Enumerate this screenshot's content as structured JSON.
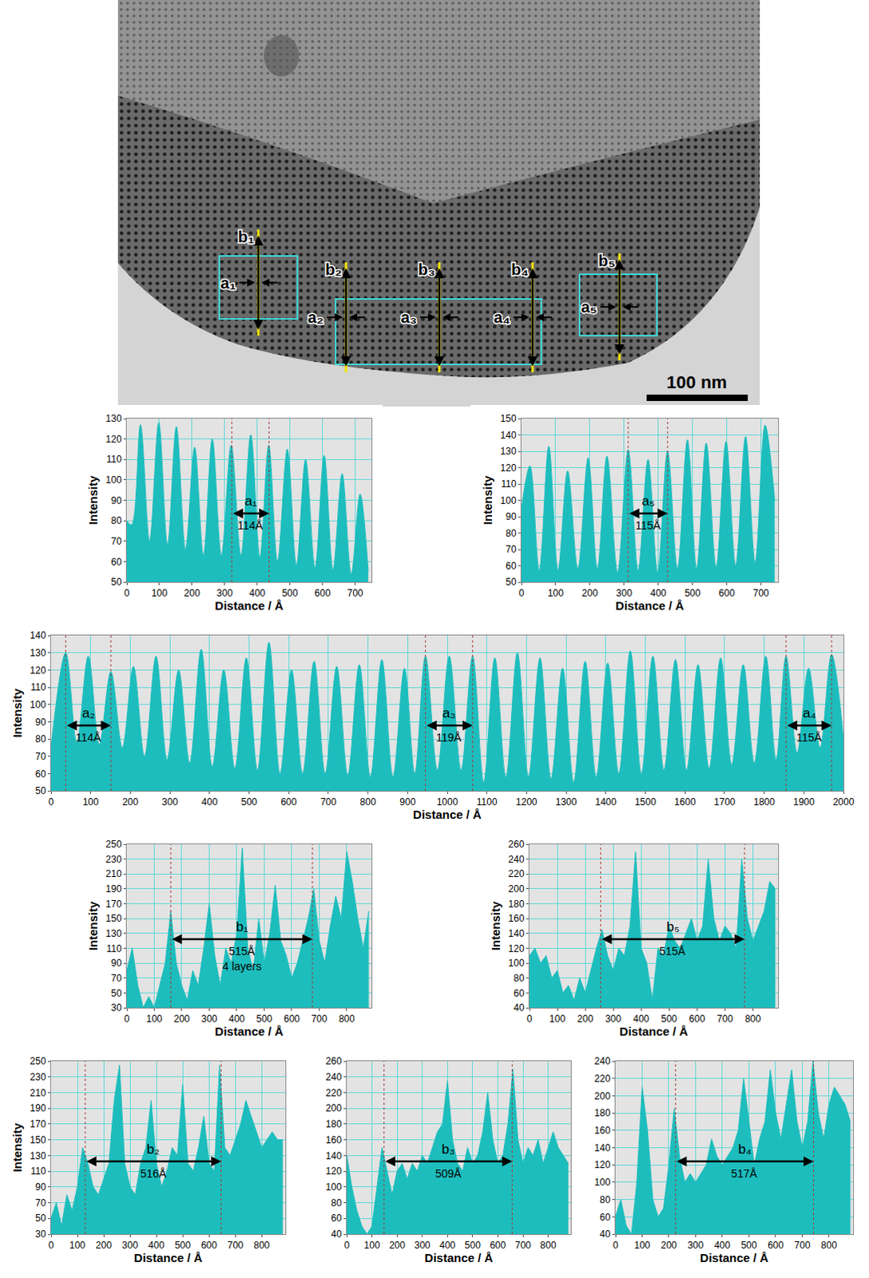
{
  "micrograph": {
    "labels": [
      {
        "a": "a₁",
        "b": "b₁"
      },
      {
        "a": "a₂",
        "b": "b₂"
      },
      {
        "a": "a₃",
        "b": "b₃"
      },
      {
        "a": "a₄",
        "b": "b₄"
      },
      {
        "a": "a₅",
        "b": "b₅"
      }
    ],
    "scale_bar": "100 nm"
  },
  "chart_data": [
    {
      "type": "area",
      "line_style": "smooth",
      "x_label": "Distance / Å",
      "y_label": "Intensity",
      "color": "#1dbdbd",
      "grid": true,
      "x": [
        0,
        15,
        42,
        70,
        98,
        125,
        152,
        180,
        208,
        235,
        262,
        290,
        320,
        350,
        380,
        408,
        435,
        462,
        492,
        520,
        548,
        577,
        605,
        632,
        660,
        688,
        715,
        740
      ],
      "values": [
        80,
        78,
        127,
        70,
        128,
        68,
        126,
        66,
        116,
        63,
        120,
        63,
        117,
        63,
        122,
        62,
        117,
        60,
        115,
        58,
        110,
        57,
        112,
        56,
        103,
        54,
        93,
        55
      ],
      "xlim": [
        0,
        750
      ],
      "xticks": [
        0,
        100,
        200,
        300,
        400,
        500,
        600,
        700
      ],
      "ylim": [
        50,
        130
      ],
      "yticks": [
        50,
        60,
        70,
        80,
        90,
        100,
        110,
        120,
        130
      ],
      "annotations": [
        {
          "label": "a₁",
          "text": "114Å",
          "length": 114,
          "start": 322,
          "end": 436
        }
      ]
    },
    {
      "type": "area",
      "line_style": "smooth",
      "x_label": "Distance / Å",
      "y_label": "Intensity",
      "color": "#1dbdbd",
      "grid": true,
      "x": [
        0,
        25,
        52,
        80,
        107,
        135,
        165,
        195,
        222,
        250,
        281,
        312,
        341,
        370,
        398,
        427,
        456,
        485,
        512,
        540,
        569,
        598,
        626,
        655,
        683,
        712,
        740
      ],
      "values": [
        95,
        121,
        57,
        133,
        57,
        118,
        58,
        126,
        58,
        127,
        56,
        131,
        57,
        125,
        56,
        130,
        58,
        137,
        58,
        135,
        59,
        136,
        60,
        139,
        62,
        146,
        100
      ],
      "xlim": [
        0,
        750
      ],
      "xticks": [
        0,
        100,
        200,
        300,
        400,
        500,
        600,
        700
      ],
      "ylim": [
        50,
        150
      ],
      "yticks": [
        50,
        60,
        70,
        80,
        90,
        100,
        110,
        120,
        130,
        140,
        150
      ],
      "annotations": [
        {
          "label": "a₅",
          "text": "115Å",
          "length": 115,
          "start": 312,
          "end": 427
        }
      ]
    },
    {
      "type": "area",
      "line_style": "smooth",
      "x_label": "Distance / Å",
      "y_label": "Intensity",
      "color": "#1dbdbd",
      "grid": true,
      "x": [
        0,
        37,
        65,
        94,
        122,
        151,
        180,
        208,
        236,
        265,
        293,
        322,
        350,
        379,
        407,
        436,
        464,
        493,
        521,
        550,
        578,
        607,
        635,
        664,
        692,
        721,
        749,
        778,
        806,
        835,
        863,
        892,
        918,
        945,
        975,
        1005,
        1035,
        1064,
        1092,
        1120,
        1148,
        1177,
        1205,
        1234,
        1262,
        1291,
        1319,
        1348,
        1376,
        1405,
        1433,
        1462,
        1490,
        1519,
        1547,
        1576,
        1604,
        1633,
        1661,
        1690,
        1718,
        1747,
        1775,
        1804,
        1830,
        1855,
        1883,
        1912,
        1941,
        1970,
        2000
      ],
      "values": [
        75,
        130,
        78,
        128,
        77,
        119,
        75,
        122,
        70,
        128,
        68,
        120,
        66,
        132,
        64,
        120,
        63,
        127,
        62,
        136,
        60,
        120,
        60,
        125,
        60,
        122,
        59,
        123,
        58,
        126,
        58,
        121,
        60,
        128,
        62,
        128,
        62,
        128,
        55,
        127,
        58,
        130,
        58,
        127,
        57,
        121,
        55,
        125,
        58,
        124,
        60,
        131,
        60,
        128,
        62,
        126,
        62,
        123,
        63,
        127,
        65,
        123,
        66,
        128,
        68,
        128,
        72,
        121,
        75,
        129,
        80
      ],
      "xlim": [
        0,
        2000
      ],
      "xticks": [
        0,
        100,
        200,
        300,
        400,
        500,
        600,
        700,
        800,
        900,
        1000,
        1100,
        1200,
        1300,
        1400,
        1500,
        1600,
        1700,
        1800,
        1900,
        2000
      ],
      "ylim": [
        50,
        140
      ],
      "yticks": [
        50,
        60,
        70,
        80,
        90,
        100,
        110,
        120,
        130,
        140
      ],
      "annotations": [
        {
          "label": "a₂",
          "text": "114Å",
          "length": 114,
          "start": 37,
          "end": 151
        },
        {
          "label": "a₃",
          "text": "119Å",
          "length": 119,
          "start": 945,
          "end": 1064
        },
        {
          "label": "a₄",
          "text": "115Å",
          "length": 115,
          "start": 1855,
          "end": 1970
        }
      ]
    },
    {
      "type": "area",
      "x_label": "Distance / Å",
      "y_label": "Intensity",
      "color": "#1dbdbd",
      "grid": true,
      "x": [
        0,
        20,
        40,
        60,
        80,
        100,
        120,
        140,
        160,
        180,
        200,
        220,
        240,
        260,
        280,
        300,
        320,
        340,
        360,
        380,
        400,
        420,
        440,
        460,
        480,
        500,
        520,
        540,
        560,
        580,
        600,
        620,
        640,
        660,
        680,
        700,
        720,
        740,
        760,
        780,
        800,
        820,
        840,
        860,
        880
      ],
      "values": [
        80,
        110,
        60,
        30,
        45,
        30,
        60,
        90,
        160,
        90,
        60,
        40,
        80,
        60,
        110,
        170,
        100,
        60,
        110,
        90,
        130,
        245,
        110,
        80,
        150,
        90,
        130,
        195,
        120,
        100,
        70,
        90,
        120,
        150,
        190,
        120,
        90,
        140,
        180,
        150,
        240,
        200,
        150,
        110,
        160
      ],
      "xlim": [
        0,
        890
      ],
      "xticks": [
        0,
        100,
        200,
        300,
        400,
        500,
        600,
        700,
        800
      ],
      "ylim": [
        30,
        250
      ],
      "yticks": [
        30,
        50,
        70,
        90,
        110,
        130,
        150,
        170,
        190,
        210,
        230,
        250
      ],
      "annotations": [
        {
          "label": "b₁",
          "text": "515Å",
          "subtext": "4 layers",
          "length": 515,
          "start": 160,
          "end": 675
        }
      ]
    },
    {
      "type": "area",
      "x_label": "Distance / Å",
      "y_label": "Intensity",
      "color": "#1dbdbd",
      "grid": true,
      "x": [
        0,
        20,
        40,
        60,
        80,
        100,
        120,
        140,
        160,
        180,
        200,
        220,
        240,
        260,
        280,
        300,
        320,
        340,
        360,
        380,
        400,
        420,
        440,
        460,
        480,
        500,
        520,
        540,
        560,
        580,
        600,
        620,
        640,
        660,
        680,
        700,
        720,
        740,
        760,
        780,
        800,
        820,
        840,
        860,
        880
      ],
      "values": [
        110,
        120,
        100,
        110,
        80,
        90,
        60,
        70,
        50,
        80,
        60,
        90,
        120,
        145,
        110,
        90,
        120,
        110,
        150,
        250,
        120,
        100,
        50,
        120,
        110,
        150,
        130,
        120,
        140,
        160,
        130,
        150,
        240,
        160,
        130,
        150,
        140,
        120,
        240,
        160,
        130,
        150,
        170,
        210,
        200
      ],
      "xlim": [
        0,
        890
      ],
      "xticks": [
        0,
        100,
        200,
        300,
        400,
        500,
        600,
        700,
        800
      ],
      "ylim": [
        40,
        260
      ],
      "yticks": [
        40,
        60,
        80,
        100,
        120,
        140,
        160,
        180,
        200,
        220,
        240,
        260
      ],
      "annotations": [
        {
          "label": "b₅",
          "text": "515Å",
          "length": 515,
          "start": 255,
          "end": 770
        }
      ]
    },
    {
      "type": "area",
      "x_label": "Distance / Å",
      "y_label": "Intensity",
      "color": "#1dbdbd",
      "grid": true,
      "x": [
        0,
        20,
        40,
        60,
        80,
        100,
        120,
        140,
        160,
        180,
        200,
        220,
        240,
        260,
        280,
        300,
        320,
        340,
        360,
        380,
        400,
        420,
        440,
        460,
        480,
        500,
        520,
        540,
        560,
        580,
        600,
        620,
        640,
        660,
        680,
        700,
        720,
        740,
        760,
        780,
        800,
        820,
        840,
        860,
        880
      ],
      "values": [
        50,
        70,
        40,
        80,
        60,
        90,
        140,
        120,
        90,
        80,
        100,
        120,
        200,
        245,
        120,
        90,
        80,
        120,
        140,
        200,
        120,
        90,
        110,
        140,
        130,
        220,
        120,
        110,
        140,
        180,
        120,
        110,
        245,
        140,
        130,
        150,
        170,
        200,
        180,
        160,
        140,
        150,
        160,
        150,
        150
      ],
      "xlim": [
        0,
        890
      ],
      "xticks": [
        0,
        100,
        200,
        300,
        400,
        500,
        600,
        700,
        800
      ],
      "ylim": [
        30,
        250
      ],
      "yticks": [
        30,
        50,
        70,
        90,
        110,
        130,
        150,
        170,
        190,
        210,
        230,
        250
      ],
      "annotations": [
        {
          "label": "b₂",
          "text": "516Å",
          "length": 516,
          "start": 130,
          "end": 646
        }
      ]
    },
    {
      "type": "area",
      "x_label": "Distance / Å",
      "color": "#1dbdbd",
      "grid": true,
      "x": [
        0,
        20,
        40,
        60,
        80,
        100,
        120,
        140,
        160,
        180,
        200,
        220,
        240,
        260,
        280,
        300,
        320,
        340,
        360,
        380,
        400,
        420,
        440,
        460,
        480,
        500,
        520,
        540,
        560,
        580,
        600,
        620,
        640,
        660,
        680,
        700,
        720,
        740,
        760,
        780,
        800,
        820,
        840,
        860,
        880
      ],
      "values": [
        140,
        100,
        70,
        50,
        40,
        50,
        100,
        150,
        120,
        90,
        120,
        130,
        110,
        130,
        120,
        140,
        130,
        150,
        170,
        180,
        235,
        160,
        130,
        120,
        150,
        130,
        140,
        170,
        220,
        160,
        130,
        140,
        180,
        250,
        160,
        130,
        150,
        140,
        160,
        130,
        150,
        170,
        150,
        140,
        130
      ],
      "xlim": [
        0,
        890
      ],
      "xticks": [
        0,
        100,
        200,
        300,
        400,
        500,
        600,
        700,
        800
      ],
      "ylim": [
        40,
        260
      ],
      "yticks": [
        40,
        60,
        80,
        100,
        120,
        140,
        160,
        180,
        200,
        220,
        240,
        260
      ],
      "annotations": [
        {
          "label": "b₃",
          "text": "509Å",
          "length": 509,
          "start": 148,
          "end": 657
        }
      ]
    },
    {
      "type": "area",
      "x_label": "Distance / Å",
      "color": "#1dbdbd",
      "grid": true,
      "x": [
        0,
        20,
        40,
        60,
        80,
        100,
        120,
        140,
        160,
        180,
        200,
        220,
        240,
        260,
        280,
        300,
        320,
        340,
        360,
        380,
        400,
        420,
        440,
        460,
        480,
        500,
        520,
        540,
        560,
        580,
        600,
        620,
        640,
        660,
        680,
        700,
        720,
        740,
        760,
        780,
        800,
        820,
        840,
        860,
        880
      ],
      "values": [
        60,
        80,
        50,
        40,
        100,
        210,
        160,
        80,
        60,
        70,
        120,
        185,
        130,
        100,
        110,
        100,
        110,
        120,
        150,
        130,
        120,
        130,
        140,
        160,
        220,
        170,
        120,
        150,
        170,
        230,
        180,
        150,
        190,
        230,
        170,
        140,
        170,
        240,
        180,
        150,
        190,
        210,
        200,
        190,
        170
      ],
      "xlim": [
        0,
        890
      ],
      "xticks": [
        0,
        100,
        200,
        300,
        400,
        500,
        600,
        700,
        800
      ],
      "ylim": [
        40,
        240
      ],
      "yticks": [
        40,
        60,
        80,
        100,
        120,
        140,
        160,
        180,
        200,
        220,
        240
      ],
      "annotations": [
        {
          "label": "b₄",
          "text": "517Å",
          "length": 517,
          "start": 225,
          "end": 742
        }
      ]
    }
  ]
}
